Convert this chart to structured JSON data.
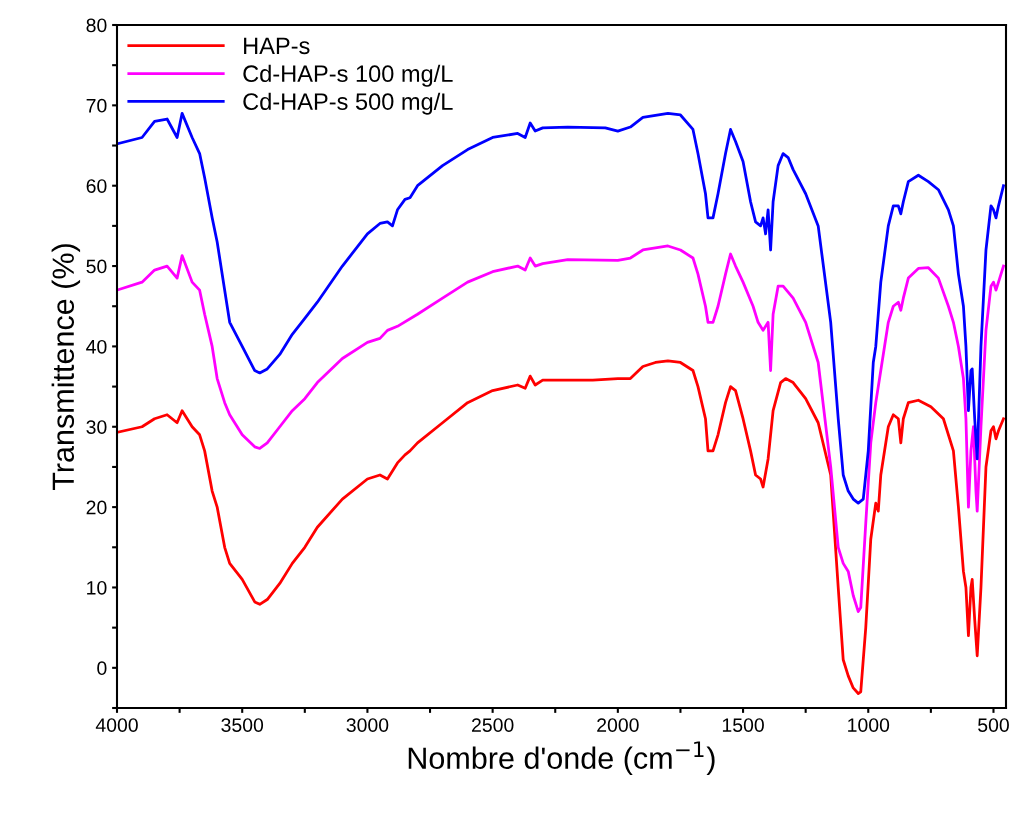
{
  "chart_data": {
    "type": "line",
    "xlabel": "Nombre d'onde (cm$^{−1}$)",
    "ylabel": "Transmittence (%)",
    "xlim": [
      4000,
      450
    ],
    "ylim": [
      -5,
      80
    ],
    "xticks": [
      4000,
      {
        "value": 3750,
        "label": null
      },
      3500,
      {
        "value": 3250,
        "label": null
      },
      3000,
      {
        "value": 2750,
        "label": null
      },
      2500,
      {
        "value": 2250,
        "label": null
      },
      2000,
      {
        "value": 1750,
        "label": null
      },
      1500,
      {
        "value": 1250,
        "label": null
      },
      1000,
      {
        "value": 750,
        "label": null
      },
      500
    ],
    "yticks": [
      {
        "value": -5,
        "label": null
      },
      0,
      {
        "value": 5,
        "label": null
      },
      10,
      {
        "value": 15,
        "label": null
      },
      20,
      {
        "value": 25,
        "label": null
      },
      30,
      {
        "value": 35,
        "label": null
      },
      40,
      {
        "value": 45,
        "label": null
      },
      50,
      {
        "value": 55,
        "label": null
      },
      60,
      {
        "value": 65,
        "label": null
      },
      70,
      {
        "value": 75,
        "label": null
      },
      80
    ],
    "legend": "top left",
    "grid": false,
    "marker": "none",
    "line_style": "solid",
    "series": [
      {
        "name": "HAP-s",
        "color": "#ff0000",
        "x": [
          4000,
          3900,
          3850,
          3800,
          3760,
          3740,
          3700,
          3670,
          3650,
          3620,
          3600,
          3570,
          3550,
          3500,
          3450,
          3430,
          3400,
          3350,
          3300,
          3250,
          3200,
          3100,
          3000,
          2950,
          2920,
          2880,
          2850,
          2830,
          2800,
          2700,
          2600,
          2500,
          2400,
          2370,
          2350,
          2330,
          2300,
          2200,
          2100,
          2000,
          1950,
          1900,
          1850,
          1800,
          1750,
          1700,
          1680,
          1650,
          1640,
          1620,
          1600,
          1570,
          1550,
          1530,
          1500,
          1470,
          1450,
          1430,
          1420,
          1400,
          1380,
          1350,
          1330,
          1300,
          1250,
          1200,
          1150,
          1120,
          1100,
          1080,
          1060,
          1040,
          1030,
          1010,
          990,
          970,
          960,
          950,
          920,
          900,
          880,
          870,
          860,
          840,
          800,
          750,
          700,
          660,
          640,
          620,
          610,
          600,
          590,
          585,
          575,
          565,
          550,
          530,
          510,
          500,
          490,
          480,
          460
        ],
        "values": [
          29.3,
          30,
          31,
          31.5,
          30.5,
          32,
          30,
          29,
          27,
          22,
          20,
          15,
          13,
          11,
          8.2,
          7.9,
          8.5,
          10.5,
          13,
          15,
          17.5,
          21,
          23.5,
          24,
          23.5,
          25.5,
          26.5,
          27,
          28,
          30.5,
          33,
          34.5,
          35.2,
          34.8,
          36.3,
          35.2,
          35.8,
          35.8,
          35.8,
          36,
          36,
          37.5,
          38,
          38.2,
          38,
          37,
          35,
          31,
          27,
          27,
          29,
          33,
          35,
          34.5,
          31,
          27,
          24,
          23.5,
          22.5,
          26,
          32,
          35.5,
          36,
          35.5,
          33.5,
          30.5,
          24,
          10,
          1,
          -1,
          -2.5,
          -3.2,
          -3,
          5,
          16,
          20.5,
          19.5,
          24,
          30,
          31.5,
          31,
          28,
          31,
          33,
          33.3,
          32.5,
          31,
          27,
          20,
          12,
          10,
          4,
          10,
          11,
          6,
          1.5,
          10,
          25,
          29.5,
          30,
          28.5,
          29.5,
          31
        ]
      },
      {
        "name": "Cd-HAP-s 100 mg/L",
        "color": "#ff00ff",
        "x": [
          4000,
          3900,
          3850,
          3800,
          3760,
          3740,
          3700,
          3670,
          3650,
          3620,
          3600,
          3570,
          3550,
          3500,
          3450,
          3430,
          3400,
          3350,
          3300,
          3250,
          3200,
          3100,
          3000,
          2950,
          2920,
          2880,
          2800,
          2700,
          2600,
          2500,
          2400,
          2370,
          2350,
          2330,
          2300,
          2200,
          2000,
          1950,
          1900,
          1800,
          1750,
          1700,
          1680,
          1650,
          1640,
          1620,
          1600,
          1570,
          1550,
          1530,
          1500,
          1460,
          1440,
          1420,
          1400,
          1390,
          1380,
          1360,
          1340,
          1300,
          1250,
          1200,
          1150,
          1120,
          1100,
          1080,
          1060,
          1040,
          1030,
          1010,
          990,
          970,
          950,
          920,
          900,
          880,
          870,
          860,
          840,
          800,
          760,
          720,
          680,
          660,
          640,
          620,
          610,
          600,
          590,
          580,
          570,
          565,
          550,
          530,
          510,
          500,
          490,
          480,
          460
        ],
        "values": [
          47,
          48,
          49.5,
          50,
          48.5,
          51.3,
          48,
          47,
          44,
          40,
          36,
          33,
          31.5,
          29,
          27.5,
          27.3,
          28,
          30,
          32,
          33.5,
          35.5,
          38.5,
          40.5,
          41,
          42,
          42.5,
          44,
          46,
          48,
          49.3,
          50,
          49.5,
          51,
          50,
          50.3,
          50.8,
          50.7,
          51,
          52,
          52.5,
          52,
          51,
          49,
          45,
          43,
          43,
          45,
          49,
          51.5,
          50,
          48,
          45,
          43,
          42,
          43,
          37,
          44,
          47.5,
          47.5,
          46,
          43,
          38,
          25,
          15,
          13,
          12,
          9,
          7,
          7.5,
          18,
          28,
          33,
          37,
          43,
          45,
          45.5,
          44.5,
          46,
          48.5,
          49.7,
          49.8,
          48.5,
          45,
          43,
          40,
          36,
          31,
          20,
          27,
          30,
          22,
          19.5,
          30,
          42,
          47.5,
          48,
          47,
          48,
          50
        ]
      },
      {
        "name": "Cd-HAP-s 500 mg/L",
        "color": "#0000ff",
        "x": [
          4000,
          3900,
          3850,
          3800,
          3760,
          3740,
          3700,
          3670,
          3650,
          3620,
          3600,
          3570,
          3550,
          3500,
          3450,
          3430,
          3400,
          3350,
          3300,
          3250,
          3200,
          3100,
          3000,
          2950,
          2920,
          2900,
          2880,
          2850,
          2830,
          2800,
          2700,
          2600,
          2500,
          2400,
          2370,
          2350,
          2330,
          2300,
          2200,
          2050,
          2000,
          1950,
          1900,
          1800,
          1750,
          1700,
          1680,
          1650,
          1640,
          1620,
          1600,
          1570,
          1550,
          1530,
          1500,
          1470,
          1450,
          1430,
          1420,
          1410,
          1400,
          1390,
          1380,
          1360,
          1340,
          1320,
          1300,
          1250,
          1200,
          1150,
          1120,
          1100,
          1080,
          1060,
          1040,
          1020,
          1000,
          980,
          970,
          950,
          920,
          900,
          880,
          870,
          860,
          840,
          800,
          760,
          720,
          680,
          660,
          640,
          620,
          610,
          600,
          590,
          585,
          575,
          565,
          550,
          530,
          510,
          500,
          490,
          480,
          460
        ],
        "values": [
          65.2,
          66,
          68,
          68.3,
          66,
          69,
          66,
          64,
          61,
          56,
          53,
          47,
          43,
          40,
          37,
          36.7,
          37.2,
          39,
          41.5,
          43.5,
          45.5,
          50,
          54,
          55.3,
          55.5,
          55,
          57,
          58.3,
          58.5,
          60,
          62.5,
          64.5,
          66,
          66.5,
          66,
          67.8,
          66.8,
          67.2,
          67.3,
          67.2,
          66.8,
          67.3,
          68.5,
          69,
          68.8,
          67,
          64,
          59,
          56,
          56,
          59,
          64,
          67,
          65.5,
          63,
          58,
          55.5,
          55,
          56,
          54,
          57,
          52,
          58,
          62.5,
          64,
          63.5,
          62,
          59,
          55,
          43,
          31,
          24,
          22,
          21,
          20.5,
          21,
          27,
          38,
          40,
          48,
          55,
          57.5,
          57.5,
          56.5,
          58,
          60.5,
          61.3,
          60.5,
          59.5,
          57,
          55,
          49,
          45,
          40,
          32,
          37,
          37.2,
          31,
          26,
          40,
          52,
          57.5,
          57,
          56,
          57.5,
          60
        ]
      }
    ]
  }
}
